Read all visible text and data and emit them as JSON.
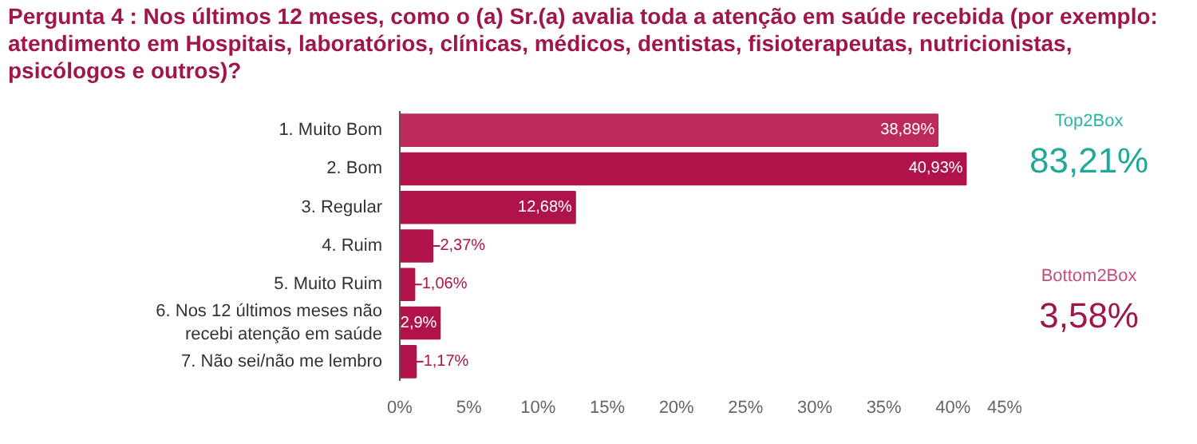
{
  "chart_data": {
    "type": "bar",
    "orientation": "horizontal",
    "title": "Pergunta 4 : Nos últimos 12 meses, como o (a) Sr.(a) avalia toda a atenção em saúde recebida (por exemplo: atendimento em Hospitais, laboratórios, clínicas, médicos, dentistas, fisioterapeutas, nutricionistas, psicólogos e outros)?",
    "categories": [
      "1. Muito Bom",
      "2. Bom",
      "3. Regular",
      "4. Ruim",
      "5. Muito Ruim",
      "6. Nos 12 últimos meses não recebi atenção em saúde",
      "7. Não sei/não me lembro"
    ],
    "values": [
      38.89,
      40.93,
      12.68,
      2.37,
      1.06,
      2.9,
      1.17
    ],
    "value_labels": [
      "38,89%",
      "40,93%",
      "12,68%",
      "2,37%",
      "1,06%",
      "2,9%",
      "1,17%"
    ],
    "colors": [
      "#bc2a5c",
      "#b0124a",
      "#b0124a",
      "#b0124a",
      "#b0124a",
      "#b0124a",
      "#b0124a"
    ],
    "xlim": [
      0,
      45
    ],
    "xticks": [
      {
        "value": 0,
        "label": "0%"
      },
      {
        "value": 5,
        "label": "5%"
      },
      {
        "value": 10,
        "label": "10%"
      },
      {
        "value": 15,
        "label": "15%"
      },
      {
        "value": 20,
        "label": "20%"
      },
      {
        "value": 25,
        "label": "25%"
      },
      {
        "value": 30,
        "label": "30%"
      },
      {
        "value": 35,
        "label": "35%"
      },
      {
        "value": 40,
        "label": "40%"
      },
      {
        "value": 45,
        "label": "45%"
      }
    ],
    "grid": false,
    "annotations": [
      "Top2Box",
      "83,21%",
      "Bottom2Box",
      "3,58%"
    ]
  }
}
